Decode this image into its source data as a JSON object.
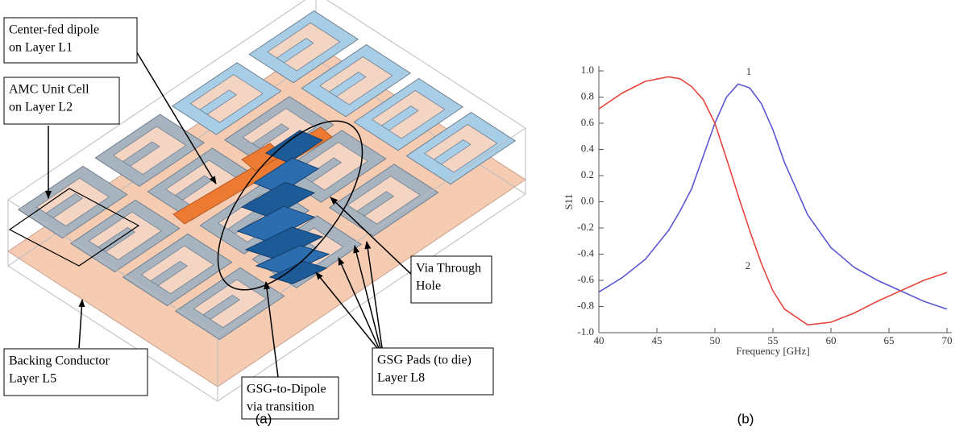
{
  "panel_a": {
    "caption": "(a)",
    "labels": [
      {
        "lines": [
          "Center-fed dipole",
          "on Layer L1"
        ]
      },
      {
        "lines": [
          "AMC Unit Cell",
          "on Layer L2"
        ]
      },
      {
        "lines": [
          "Backing Conductor",
          "Layer L5"
        ]
      },
      {
        "lines": [
          "GSG-to-Dipole",
          "via transition"
        ]
      },
      {
        "lines": [
          "GSG Pads (to die)",
          "Layer L8"
        ]
      },
      {
        "lines": [
          "Via Through",
          "Hole"
        ]
      }
    ]
  },
  "chart_data": {
    "type": "line",
    "caption": "(b)",
    "xlabel": "Frequency [GHz]",
    "ylabel": "S11",
    "x": [
      40,
      42,
      44,
      46,
      47,
      48,
      49,
      50,
      51,
      52,
      53,
      54,
      55,
      56,
      58,
      60,
      62,
      64,
      66,
      68,
      70
    ],
    "series": [
      {
        "name": "1",
        "color": "#5b57d4",
        "values": [
          -0.69,
          -0.58,
          -0.44,
          -0.22,
          -0.07,
          0.1,
          0.35,
          0.6,
          0.8,
          0.9,
          0.87,
          0.75,
          0.55,
          0.3,
          -0.1,
          -0.35,
          -0.5,
          -0.6,
          -0.68,
          -0.76,
          -0.82
        ]
      },
      {
        "name": "2",
        "color": "#e8453c",
        "values": [
          0.71,
          0.83,
          0.92,
          0.955,
          0.94,
          0.88,
          0.78,
          0.6,
          0.33,
          0.05,
          -0.22,
          -0.47,
          -0.68,
          -0.82,
          -0.94,
          -0.92,
          -0.85,
          -0.76,
          -0.68,
          -0.6,
          -0.54
        ]
      }
    ],
    "xlim": [
      40,
      70
    ],
    "xticks": [
      40,
      45,
      50,
      55,
      60,
      65,
      70
    ],
    "ylim": [
      -1,
      1
    ],
    "yticks": [
      {
        "value": -1,
        "label": "-1.0"
      },
      -0.8,
      -0.6,
      -0.4,
      -0.2,
      {
        "value": 0,
        "label": "0.0"
      },
      0.2,
      0.4,
      0.6,
      0.8,
      {
        "value": 1,
        "label": "1.0"
      }
    ]
  }
}
